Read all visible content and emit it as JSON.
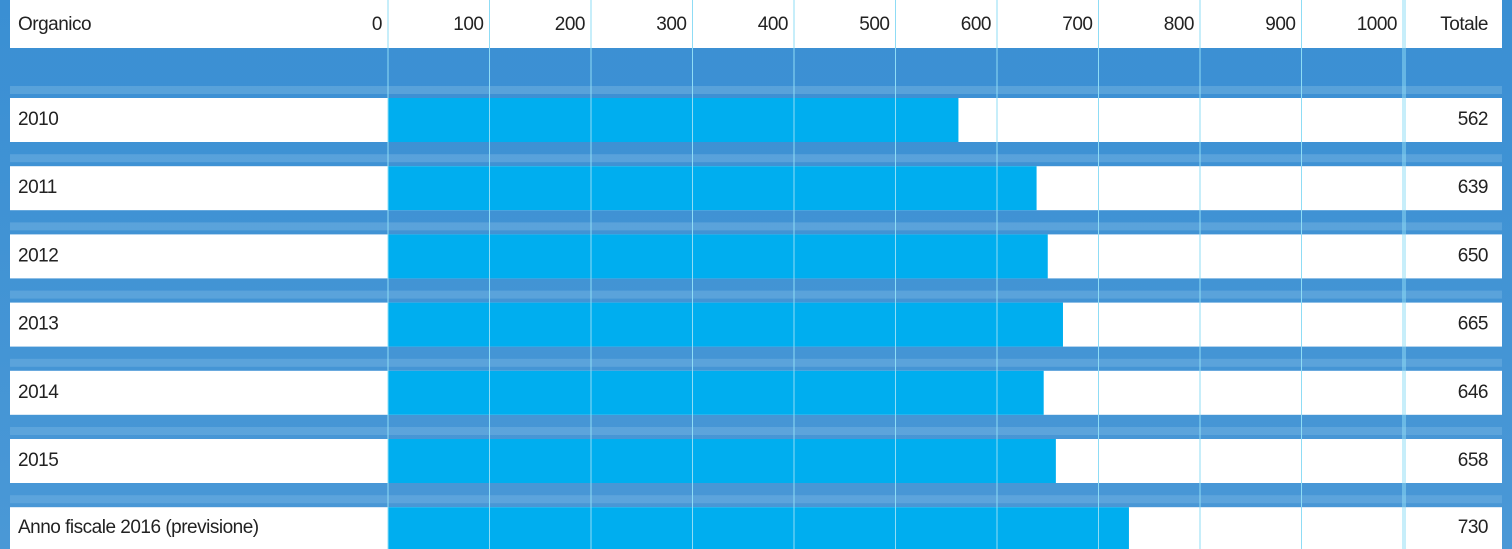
{
  "chart_data": {
    "type": "bar",
    "orientation": "horizontal",
    "category_header": "Organico",
    "total_header": "Totale",
    "categories": [
      "2010",
      "2011",
      "2012",
      "2013",
      "2014",
      "2015",
      "Anno fiscale 2016 (previsione)"
    ],
    "values": [
      562,
      639,
      650,
      665,
      646,
      658,
      730
    ],
    "color": "#00aeef",
    "xlim": [
      0,
      1000
    ],
    "xticks": [
      0,
      100,
      200,
      300,
      400,
      500,
      600,
      700,
      800,
      900,
      1000
    ],
    "grid": true
  }
}
